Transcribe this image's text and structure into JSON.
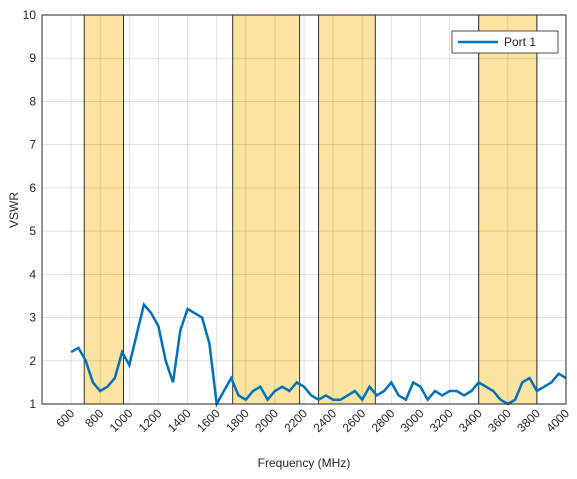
{
  "chart_data": {
    "type": "line",
    "x_label": "Frequency (MHz)",
    "y_label": "VSWR",
    "x": [
      600,
      650,
      700,
      750,
      800,
      850,
      900,
      950,
      1000,
      1050,
      1100,
      1150,
      1200,
      1250,
      1300,
      1350,
      1400,
      1450,
      1500,
      1550,
      1600,
      1650,
      1700,
      1750,
      1800,
      1850,
      1900,
      1950,
      2000,
      2050,
      2100,
      2150,
      2200,
      2250,
      2300,
      2350,
      2400,
      2450,
      2500,
      2550,
      2600,
      2650,
      2700,
      2750,
      2800,
      2850,
      2900,
      2950,
      3000,
      3050,
      3100,
      3150,
      3200,
      3250,
      3300,
      3350,
      3400,
      3450,
      3500,
      3550,
      3600,
      3650,
      3700,
      3750,
      3800,
      3850,
      3900,
      3950,
      4000
    ],
    "series": [
      {
        "name": "Port 1",
        "color": "#0072bd",
        "values": [
          2.2,
          2.3,
          2.0,
          1.5,
          1.3,
          1.4,
          1.6,
          2.2,
          1.9,
          2.6,
          3.3,
          3.1,
          2.8,
          2.0,
          1.5,
          2.7,
          3.2,
          3.1,
          3.0,
          2.4,
          1.0,
          1.3,
          1.6,
          1.2,
          1.1,
          1.3,
          1.4,
          1.1,
          1.3,
          1.4,
          1.3,
          1.5,
          1.4,
          1.2,
          1.1,
          1.2,
          1.1,
          1.1,
          1.2,
          1.3,
          1.1,
          1.4,
          1.2,
          1.3,
          1.5,
          1.2,
          1.1,
          1.5,
          1.4,
          1.1,
          1.3,
          1.2,
          1.3,
          1.3,
          1.2,
          1.3,
          1.5,
          1.4,
          1.3,
          1.1,
          1.0,
          1.1,
          1.5,
          1.6,
          1.3,
          1.4,
          1.5,
          1.7,
          1.6
        ]
      }
    ],
    "bands": [
      [
        690,
        960
      ],
      [
        1710,
        2170
      ],
      [
        2300,
        2690
      ],
      [
        3400,
        3800
      ]
    ],
    "band_color": "#fde3a0",
    "xlim": [
      400,
      4000
    ],
    "xticks": [
      600,
      800,
      1000,
      1200,
      1400,
      1600,
      1800,
      2000,
      2200,
      2400,
      2600,
      2800,
      3000,
      3200,
      3400,
      3600,
      3800,
      4000
    ],
    "ylim": [
      1,
      10
    ],
    "yticks": [
      1,
      2,
      3,
      4,
      5,
      6,
      7,
      8,
      9,
      10
    ],
    "grid": true,
    "legend": "top-right"
  }
}
